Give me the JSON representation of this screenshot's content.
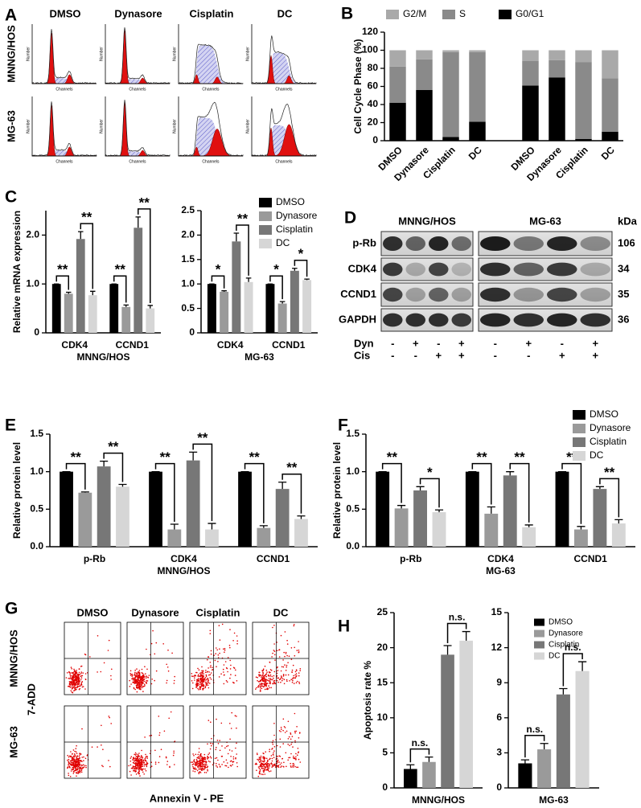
{
  "chart_data": [
    {
      "type": "flow-histograms",
      "panel": "A",
      "columns": [
        "DMSO",
        "Dynasore",
        "Cisplatin",
        "DC"
      ],
      "rows": [
        "MNNG/HOS",
        "MG-63"
      ],
      "x_label": "Channels",
      "y_label": "Number"
    },
    {
      "type": "stacked-bar",
      "panel": "B",
      "y_label": "Cell Cycle Phase (%)",
      "categories": [
        "DMSO",
        "Dynasore",
        "Cisplatin",
        "DC",
        null,
        "DMSO",
        "Dynasore",
        "Cisplatin",
        "DC"
      ],
      "series": [
        {
          "name": "G2/M",
          "color": "#a9a9a9",
          "values": [
            18,
            10,
            2,
            2,
            null,
            12,
            11,
            13,
            31
          ]
        },
        {
          "name": "S",
          "color": "#8a8a8a",
          "values": [
            40,
            34,
            94,
            77,
            null,
            27,
            19,
            85,
            59
          ]
        },
        {
          "name": "G0/G1",
          "color": "#000000",
          "values": [
            42,
            56,
            4,
            21,
            null,
            61,
            70,
            2,
            10
          ]
        }
      ],
      "ylim": [
        0,
        120
      ],
      "yticks": [
        0,
        20,
        40,
        60,
        80,
        100,
        120
      ],
      "legend": "top"
    },
    {
      "type": "bar",
      "panel": "C",
      "y_label": "Relative mRNA expression",
      "categories": [
        "CDK4",
        "CCND1"
      ],
      "x_label": "MNNG/HOS",
      "series": [
        {
          "color": "#000000",
          "values": [
            1.0,
            1.0
          ],
          "errors": [
            0,
            0
          ]
        },
        {
          "color": "#9a9a9a",
          "values": [
            0.8,
            0.53
          ],
          "errors": [
            0.03,
            0.04
          ]
        },
        {
          "color": "#777777",
          "values": [
            1.92,
            2.15
          ],
          "errors": [
            0.15,
            0.22
          ]
        },
        {
          "color": "#d6d6d6",
          "values": [
            0.77,
            0.5
          ],
          "errors": [
            0.08,
            0.06
          ]
        }
      ],
      "ylim": [
        0,
        2.5
      ],
      "yticks": [
        0,
        {
          "value": 1,
          "label": "1.0"
        },
        {
          "value": 2,
          "label": "2.0"
        }
      ],
      "significance": [
        [
          "**",
          "**"
        ],
        [
          "**",
          "**"
        ]
      ]
    },
    {
      "type": "bar",
      "categories": [
        "CDK4",
        "CCND1"
      ],
      "x_label": "MG-63",
      "series": [
        {
          "name": "DMSO",
          "color": "#000000",
          "values": [
            1.0,
            1.0
          ],
          "errors": [
            0,
            0
          ]
        },
        {
          "name": "Dynasore",
          "color": "#9a9a9a",
          "values": [
            0.84,
            0.6
          ],
          "errors": [
            0.02,
            0.04
          ]
        },
        {
          "name": "Cisplatin",
          "color": "#777777",
          "values": [
            1.87,
            1.27
          ],
          "errors": [
            0.17,
            0.05
          ]
        },
        {
          "name": "DC",
          "color": "#d6d6d6",
          "values": [
            1.04,
            1.08
          ],
          "errors": [
            0.08,
            0.02
          ]
        }
      ],
      "ylim": [
        0,
        2.5
      ],
      "yticks": [
        0,
        0.5,
        {
          "value": 1,
          "label": "1.0"
        },
        1.5,
        {
          "value": 2,
          "label": "2.0"
        },
        2.5
      ],
      "significance": [
        [
          "*",
          "**"
        ],
        [
          "*",
          "*"
        ]
      ],
      "legend": "right"
    },
    {
      "type": "western-blot",
      "panel": "D",
      "cell_lines": [
        "MNNG/HOS",
        "MG-63"
      ],
      "unit": "kDa",
      "proteins": [
        {
          "name": "p-Rb",
          "kda": 106
        },
        {
          "name": "CDK4",
          "kda": 34
        },
        {
          "name": "CCND1",
          "kda": 35
        },
        {
          "name": "GAPDH",
          "kda": 36
        }
      ],
      "treatments": [
        {
          "name": "Dyn",
          "signs": [
            "-",
            "+",
            "-",
            "+"
          ]
        },
        {
          "name": "Cis",
          "signs": [
            "-",
            "-",
            "+",
            "+"
          ]
        }
      ]
    },
    {
      "type": "bar",
      "panel": "E",
      "y_label": "Relative protein level",
      "categories": [
        "p-Rb",
        "CDK4",
        "CCND1"
      ],
      "x_label": "MNNG/HOS",
      "series": [
        {
          "color": "#000000",
          "values": [
            1.0,
            1.0,
            1.0
          ],
          "errors": [
            0,
            0,
            0
          ]
        },
        {
          "color": "#9a9a9a",
          "values": [
            0.72,
            0.23,
            0.25
          ],
          "errors": [
            0.01,
            0.07,
            0.03
          ]
        },
        {
          "color": "#777777",
          "values": [
            1.07,
            1.15,
            0.77
          ],
          "errors": [
            0.07,
            0.11,
            0.09
          ]
        },
        {
          "color": "#d6d6d6",
          "values": [
            0.8,
            0.23,
            0.37
          ],
          "errors": [
            0.03,
            0.08,
            0.04
          ]
        }
      ],
      "ylim": [
        0,
        1.5
      ],
      "yticks": [
        {
          "value": 0,
          "label": "0.0"
        },
        0.5,
        {
          "value": 1,
          "label": "1.0"
        },
        1.5
      ],
      "significance": [
        [
          "**",
          "**"
        ],
        [
          "**",
          "**"
        ],
        [
          "**",
          "**"
        ]
      ]
    },
    {
      "type": "bar",
      "panel": "F",
      "y_label": "Relative protein level",
      "categories": [
        "p-Rb",
        "CDK4",
        "CCND1"
      ],
      "x_label": "MG-63",
      "series": [
        {
          "name": "DMSO",
          "color": "#000000",
          "values": [
            1.0,
            1.0,
            1.0
          ],
          "errors": [
            0,
            0,
            0
          ]
        },
        {
          "name": "Dynasore",
          "color": "#9a9a9a",
          "values": [
            0.51,
            0.44,
            0.23
          ],
          "errors": [
            0.04,
            0.09,
            0.04
          ]
        },
        {
          "name": "Cisplatin",
          "color": "#777777",
          "values": [
            0.75,
            0.95,
            0.77
          ],
          "errors": [
            0.05,
            0.05,
            0.03
          ]
        },
        {
          "name": "DC",
          "color": "#d6d6d6",
          "values": [
            0.46,
            0.26,
            0.31
          ],
          "errors": [
            0.03,
            0.03,
            0.05
          ]
        }
      ],
      "ylim": [
        0,
        1.5
      ],
      "yticks": [
        {
          "value": 0,
          "label": "0.0"
        },
        0.5,
        {
          "value": 1,
          "label": "1.0"
        },
        1.5
      ],
      "significance": [
        [
          "**",
          "*"
        ],
        [
          "**",
          "**"
        ],
        [
          "**",
          "**"
        ]
      ],
      "legend": "right"
    },
    {
      "type": "flow-scatter",
      "panel": "G",
      "columns": [
        "DMSO",
        "Dynasore",
        "Cisplatin",
        "DC"
      ],
      "rows": [
        "MNNG/HOS",
        "MG-63"
      ],
      "x_label": "Annexin V - PE",
      "y_label": "7-ADD"
    },
    {
      "type": "bar",
      "panel": "H",
      "y_label": "Apoptosis rate %",
      "categories": [
        "MNNG/HOS"
      ],
      "series": [
        {
          "color": "#000000",
          "values": [
            2.7
          ],
          "errors": [
            0.6
          ]
        },
        {
          "color": "#9a9a9a",
          "values": [
            3.7
          ],
          "errors": [
            0.7
          ]
        },
        {
          "color": "#777777",
          "values": [
            19
          ],
          "errors": [
            1.3
          ]
        },
        {
          "color": "#d6d6d6",
          "values": [
            21
          ],
          "errors": [
            1.3
          ]
        }
      ],
      "ylim": [
        0,
        25
      ],
      "yticks": [
        0,
        5,
        10,
        15,
        20,
        25
      ],
      "significance": [
        [
          "n.s.",
          "n.s."
        ]
      ]
    },
    {
      "type": "bar",
      "categories": [
        "MG-63"
      ],
      "series": [
        {
          "name": "DMSO",
          "color": "#000000",
          "values": [
            2.1
          ],
          "errors": [
            0.3
          ]
        },
        {
          "name": "Dynasore",
          "color": "#9a9a9a",
          "values": [
            3.3
          ],
          "errors": [
            0.5
          ]
        },
        {
          "name": "Cisplatin",
          "color": "#777777",
          "values": [
            8.0
          ],
          "errors": [
            0.5
          ]
        },
        {
          "name": "DC",
          "color": "#d6d6d6",
          "values": [
            10.0
          ],
          "errors": [
            0.8
          ]
        }
      ],
      "ylim": [
        0,
        15
      ],
      "yticks": [
        0,
        3,
        6,
        9,
        12,
        15
      ],
      "significance": [
        [
          "n.s.",
          "n.s."
        ]
      ],
      "legend": "right"
    }
  ]
}
